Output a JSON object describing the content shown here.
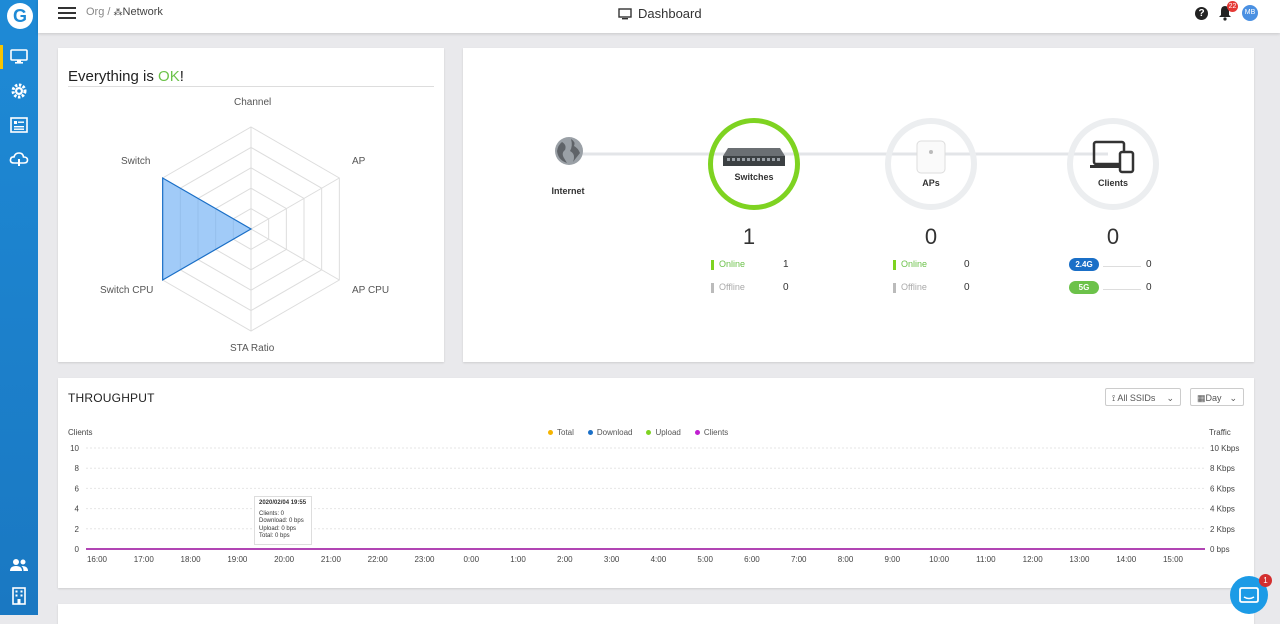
{
  "header": {
    "breadcrumb_org": "Org",
    "breadcrumb_sep": " / ",
    "breadcrumb_network": "Network",
    "title": "Dashboard",
    "help_label": "?",
    "notification_count": "22",
    "avatar_initials": "MB"
  },
  "sidebar": {
    "logo": "G",
    "items": [
      {
        "icon": "monitor-icon",
        "active": true
      },
      {
        "icon": "gear-icon",
        "active": false
      },
      {
        "icon": "list-icon",
        "active": false
      },
      {
        "icon": "cloud-icon",
        "active": false
      },
      {
        "icon": "users-icon",
        "active": false
      },
      {
        "icon": "building-icon",
        "active": false
      }
    ]
  },
  "status": {
    "title_prefix": "Everything is ",
    "title_ok": "OK",
    "title_suffix": "!",
    "radar_axes": [
      "Channel",
      "AP",
      "AP CPU",
      "STA Ratio",
      "Switch CPU",
      "Switch"
    ],
    "radar_values": [
      0,
      0,
      0,
      0,
      1,
      1
    ]
  },
  "topology": {
    "internet_label": "Internet",
    "switches": {
      "label": "Switches",
      "count": "1",
      "online_label": "Online",
      "online": "1",
      "offline_label": "Offline",
      "offline": "0"
    },
    "aps": {
      "label": "APs",
      "count": "0",
      "online_label": "Online",
      "online": "0",
      "offline_label": "Offline",
      "offline": "0"
    },
    "clients": {
      "label": "Clients",
      "count": "0",
      "band1_label": "2.4G",
      "band1": "0",
      "band2_label": "5G",
      "band2": "0"
    }
  },
  "throughput": {
    "title": "THROUGHPUT",
    "ssid_select": "All SSIDs",
    "period_select": "Day",
    "left_axis_title": "Clients",
    "right_axis_title": "Traffic",
    "left_ticks": [
      "10",
      "8",
      "6",
      "4",
      "2",
      "0"
    ],
    "right_ticks": [
      "10 Kbps",
      "8 Kbps",
      "6 Kbps",
      "4 Kbps",
      "2 Kbps",
      "0 bps"
    ],
    "x_ticks": [
      "16:00",
      "17:00",
      "18:00",
      "19:00",
      "20:00",
      "21:00",
      "22:00",
      "23:00",
      "0:00",
      "1:00",
      "2:00",
      "3:00",
      "4:00",
      "5:00",
      "6:00",
      "7:00",
      "8:00",
      "9:00",
      "10:00",
      "11:00",
      "12:00",
      "13:00",
      "14:00",
      "15:00"
    ],
    "legend": [
      {
        "name": "Total",
        "color": "#f5b400"
      },
      {
        "name": "Download",
        "color": "#1a6fc7"
      },
      {
        "name": "Upload",
        "color": "#7ed321"
      },
      {
        "name": "Clients",
        "color": "#c01ed0"
      }
    ],
    "tooltip": {
      "time": "2020/02/04 19:55",
      "clients": "Clients:   0",
      "download": "Download:   0 bps",
      "upload": "Upload:   0 bps",
      "total": "Total:   0 bps"
    }
  },
  "chart_data": {
    "type": "line",
    "x": [
      "16:00",
      "17:00",
      "18:00",
      "19:00",
      "20:00",
      "21:00",
      "22:00",
      "23:00",
      "0:00",
      "1:00",
      "2:00",
      "3:00",
      "4:00",
      "5:00",
      "6:00",
      "7:00",
      "8:00",
      "9:00",
      "10:00",
      "11:00",
      "12:00",
      "13:00",
      "14:00",
      "15:00"
    ],
    "series": [
      {
        "name": "Total",
        "values": [
          0,
          0,
          0,
          0,
          0,
          0,
          0,
          0,
          0,
          0,
          0,
          0,
          0,
          0,
          0,
          0,
          0,
          0,
          0,
          0,
          0,
          0,
          0,
          0
        ]
      },
      {
        "name": "Download",
        "values": [
          0,
          0,
          0,
          0,
          0,
          0,
          0,
          0,
          0,
          0,
          0,
          0,
          0,
          0,
          0,
          0,
          0,
          0,
          0,
          0,
          0,
          0,
          0,
          0
        ]
      },
      {
        "name": "Upload",
        "values": [
          0,
          0,
          0,
          0,
          0,
          0,
          0,
          0,
          0,
          0,
          0,
          0,
          0,
          0,
          0,
          0,
          0,
          0,
          0,
          0,
          0,
          0,
          0,
          0
        ]
      },
      {
        "name": "Clients",
        "values": [
          0,
          0,
          0,
          0,
          0,
          0,
          0,
          0,
          0,
          0,
          0,
          0,
          0,
          0,
          0,
          0,
          0,
          0,
          0,
          0,
          0,
          0,
          0,
          0
        ]
      }
    ],
    "ylim": [
      0,
      10
    ],
    "ylabel": "Clients",
    "y2label": "Traffic",
    "grid": true,
    "legend": "top-center"
  },
  "chat": {
    "badge": "1"
  }
}
